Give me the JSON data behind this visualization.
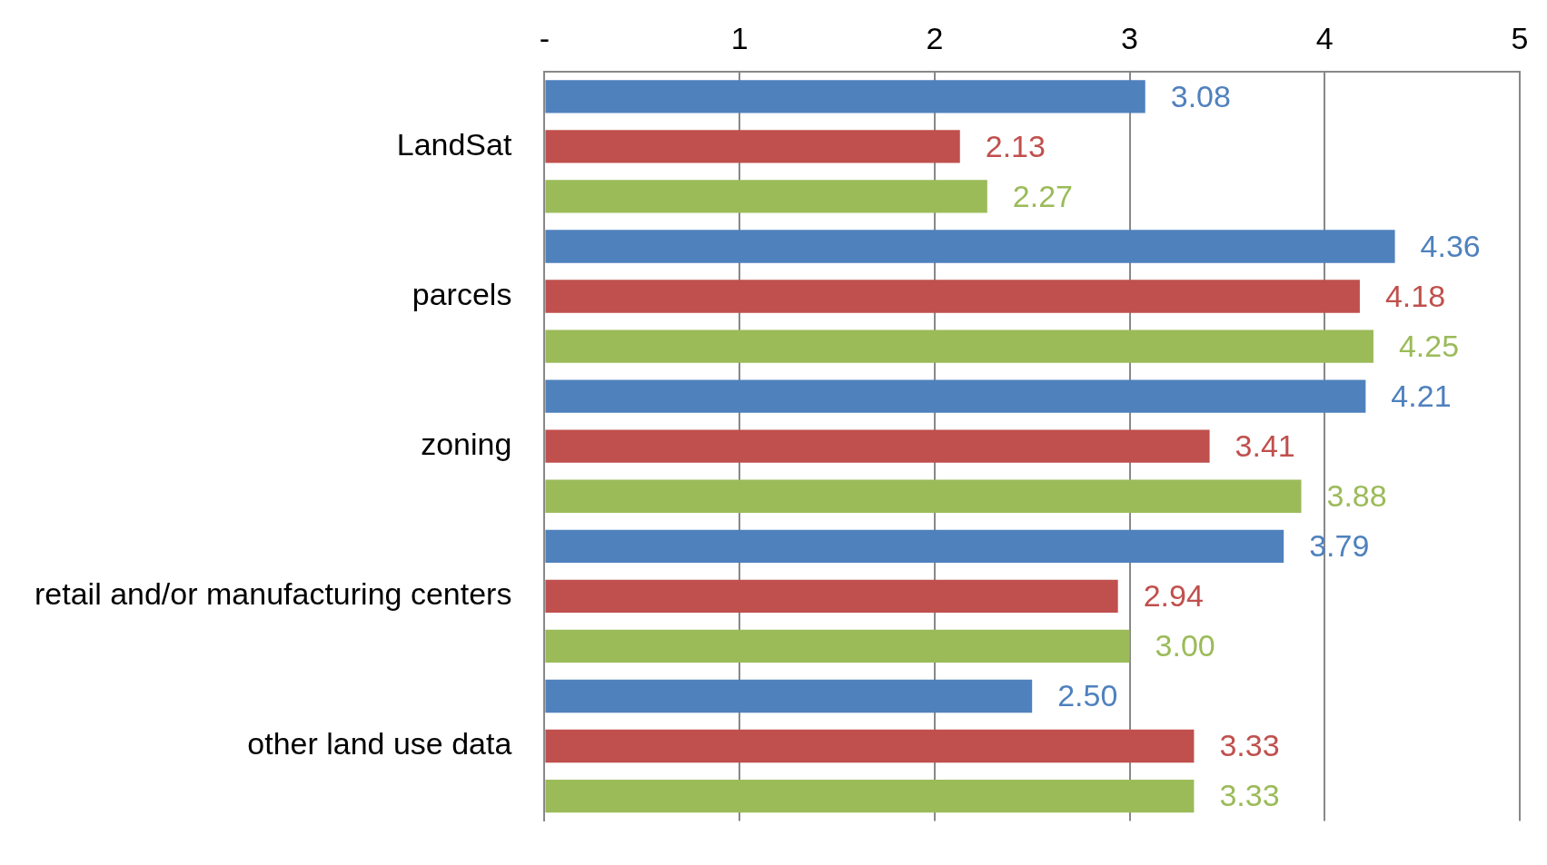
{
  "chart_data": {
    "type": "bar",
    "orientation": "horizontal",
    "categories": [
      "LandSat",
      "parcels",
      "zoning",
      "retail and/or manufacturing centers",
      "other land use data"
    ],
    "series": [
      {
        "color": "#4f81bd",
        "values": [
          3.08,
          4.36,
          4.21,
          3.79,
          2.5
        ]
      },
      {
        "color": "#c0504d",
        "values": [
          2.13,
          4.18,
          3.41,
          2.94,
          3.33
        ]
      },
      {
        "color": "#9bbb59",
        "values": [
          2.27,
          4.25,
          3.88,
          3.0,
          3.33
        ]
      }
    ],
    "value_labels": [
      [
        "3.08",
        "4.36",
        "4.21",
        "3.79",
        "2.50"
      ],
      [
        "2.13",
        "4.18",
        "3.41",
        "2.94",
        "3.33"
      ],
      [
        "2.27",
        "4.25",
        "3.88",
        "3.00",
        "3.33"
      ]
    ],
    "xlim": [
      0,
      5
    ],
    "xticks": [
      {
        "value": 0,
        "label": "-"
      },
      1,
      2,
      3,
      4,
      5
    ],
    "grid": "x",
    "legend": false
  }
}
